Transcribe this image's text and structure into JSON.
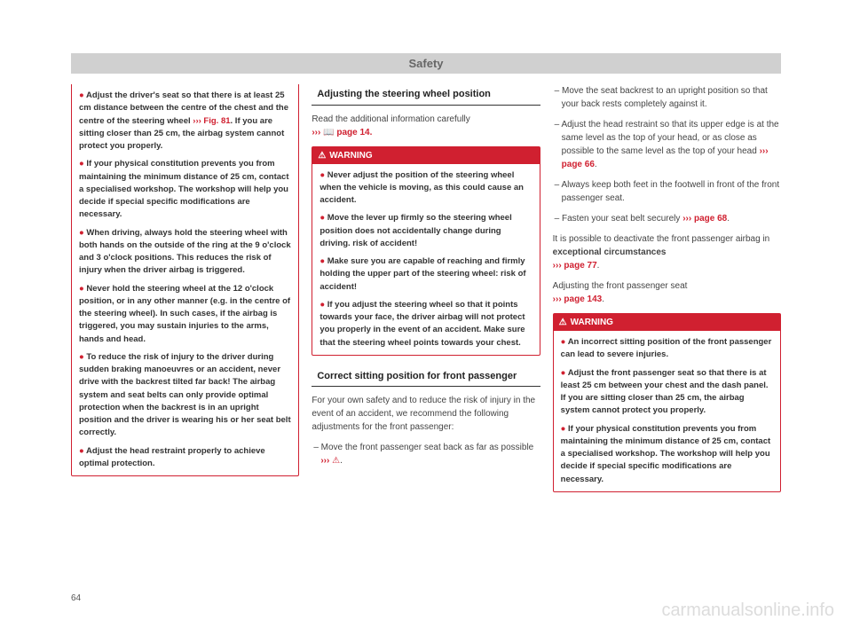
{
  "header": "Safety",
  "page_number": "64",
  "watermark": "carmanualsonline.info",
  "col1": {
    "warn_items": [
      {
        "pre": "● ",
        "bold": "Adjust the driver's seat so that there is at least 25 cm distance between the centre of the chest and the centre of the steering wheel ",
        "ref": "››› Fig. 81",
        "post": ". If you are sitting closer than 25 cm, the airbag system cannot protect you properly."
      },
      {
        "pre": "● ",
        "bold": "If your physical constitution prevents you from maintaining the minimum distance of 25 cm, contact a specialised workshop. The workshop will help you decide if special specific modifications are necessary.",
        "ref": "",
        "post": ""
      },
      {
        "pre": "● ",
        "bold": "When driving, always hold the steering wheel with both hands on the outside of the ring at the 9 o'clock and 3 o'clock positions. This reduces the risk of injury when the driver airbag is triggered.",
        "ref": "",
        "post": ""
      },
      {
        "pre": "● ",
        "bold": "Never hold the steering wheel at the 12 o'clock position, or in any other manner (e.g. in the centre of the steering wheel). In such cases, if the airbag is triggered, you may sustain injuries to the arms, hands and head.",
        "ref": "",
        "post": ""
      },
      {
        "pre": "● ",
        "bold": "To reduce the risk of injury to the driver during sudden braking manoeuvres or an accident, never drive with the backrest tilted far back! The airbag system and seat belts can only provide optimal protection when the backrest is in an upright position and the driver is wearing his or her seat belt correctly.",
        "ref": "",
        "post": ""
      },
      {
        "pre": "● ",
        "bold": "Adjust the head restraint properly to achieve optimal protection.",
        "ref": "",
        "post": ""
      }
    ]
  },
  "col2": {
    "title1": "Adjusting the steering wheel position",
    "intro1_a": "Read the additional information carefully ",
    "intro1_ref": "››› ",
    "intro1_icon": "📖",
    "intro1_b": " page 14.",
    "warn_label": "WARNING",
    "warn1_items": [
      "Never adjust the position of the steering wheel when the vehicle is moving, as this could cause an accident.",
      "Move the lever up firmly so the steering wheel position does not accidentally change during driving. risk of accident!",
      "Make sure you are capable of reaching and firmly holding the upper part of the steering wheel: risk of accident!",
      "If you adjust the steering wheel so that it points towards your face, the driver airbag will not protect you properly in the event of an accident. Make sure that the steering wheel points towards your chest."
    ],
    "title2": "Correct sitting position for front passenger",
    "intro2": "For your own safety and to reduce the risk of injury in the event of an accident, we recommend the following adjustments for the front passenger:",
    "dash1_a": "– Move the front passenger seat back as far as possible ",
    "dash1_ref": "››› ",
    "dash1_icon": "⚠",
    "dash1_b": "."
  },
  "col3": {
    "dash2": "– Move the seat backrest to an upright position so that your back rests completely against it.",
    "dash3_a": "– Adjust the head restraint so that its upper edge is at the same level as the top of your head, or as close as possible to the same level as the top of your head ",
    "dash3_ref": "››› page 66",
    "dash3_b": ".",
    "dash4": "– Always keep both feet in the footwell in front of the front passenger seat.",
    "dash5_a": "– Fasten your seat belt securely ",
    "dash5_ref": "››› page 68",
    "dash5_b": ".",
    "para1_a": "It is possible to deactivate the front passenger airbag in ",
    "para1_bold": "exceptional circumstances ",
    "para1_ref": "››› page 77",
    "para1_b": ".",
    "para2_a": "Adjusting the front passenger seat ",
    "para2_ref": "››› page 143",
    "para2_b": ".",
    "warn_label": "WARNING",
    "warn2_items": [
      "An incorrect sitting position of the front passenger can lead to severe injuries.",
      "Adjust the front passenger seat so that there is at least 25 cm between your chest and the dash panel. If you are sitting closer than 25 cm, the airbag system cannot protect you properly.",
      "If your physical constitution prevents you from maintaining the minimum distance of 25 cm, contact a specialised workshop. The workshop will help you decide if special specific modifications are necessary."
    ]
  }
}
